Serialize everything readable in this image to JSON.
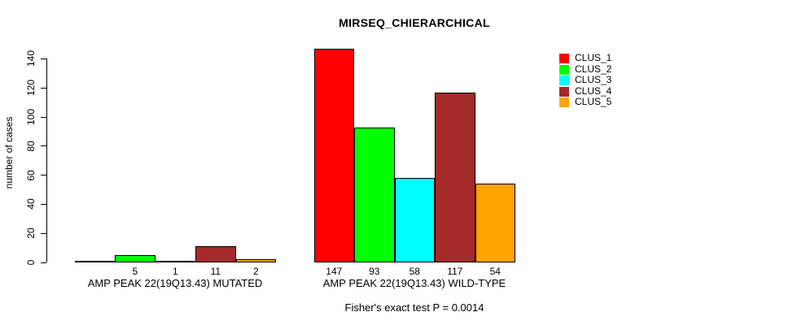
{
  "page": {
    "background": "#FFFFFF",
    "text_color": "#000000"
  },
  "chart_data": {
    "type": "bar",
    "title": "MIRSEQ_CHIERARCHICAL",
    "ylabel": "number of cases",
    "xlabel": "",
    "ylim": [
      0,
      140
    ],
    "yticks": [
      0,
      20,
      40,
      60,
      80,
      100,
      120,
      140
    ],
    "grid": false,
    "categories": [
      "AMP PEAK 22(19Q13.43) MUTATED",
      "AMP PEAK 22(19Q13.43) WILD-TYPE"
    ],
    "series": [
      {
        "name": "CLUS_1",
        "color": "#FF0000",
        "values": [
          0,
          147
        ]
      },
      {
        "name": "CLUS_2",
        "color": "#00FF00",
        "values": [
          5,
          93
        ]
      },
      {
        "name": "CLUS_3",
        "color": "#00FFFF",
        "values": [
          1,
          58
        ]
      },
      {
        "name": "CLUS_4",
        "color": "#A52A2A",
        "values": [
          11,
          117
        ]
      },
      {
        "name": "CLUS_5",
        "color": "#FFA500",
        "values": [
          2,
          54
        ]
      }
    ],
    "value_labels": [
      [
        "",
        "5",
        "1",
        "11",
        "2"
      ],
      [
        "147",
        "93",
        "58",
        "117",
        "54"
      ]
    ],
    "bar_border_color": "#000000",
    "legend": {
      "position": "top-right",
      "entries": [
        "CLUS_1",
        "CLUS_2",
        "CLUS_3",
        "CLUS_4",
        "CLUS_5"
      ]
    },
    "annotation": "Fisher's exact test P = 0.0014"
  }
}
